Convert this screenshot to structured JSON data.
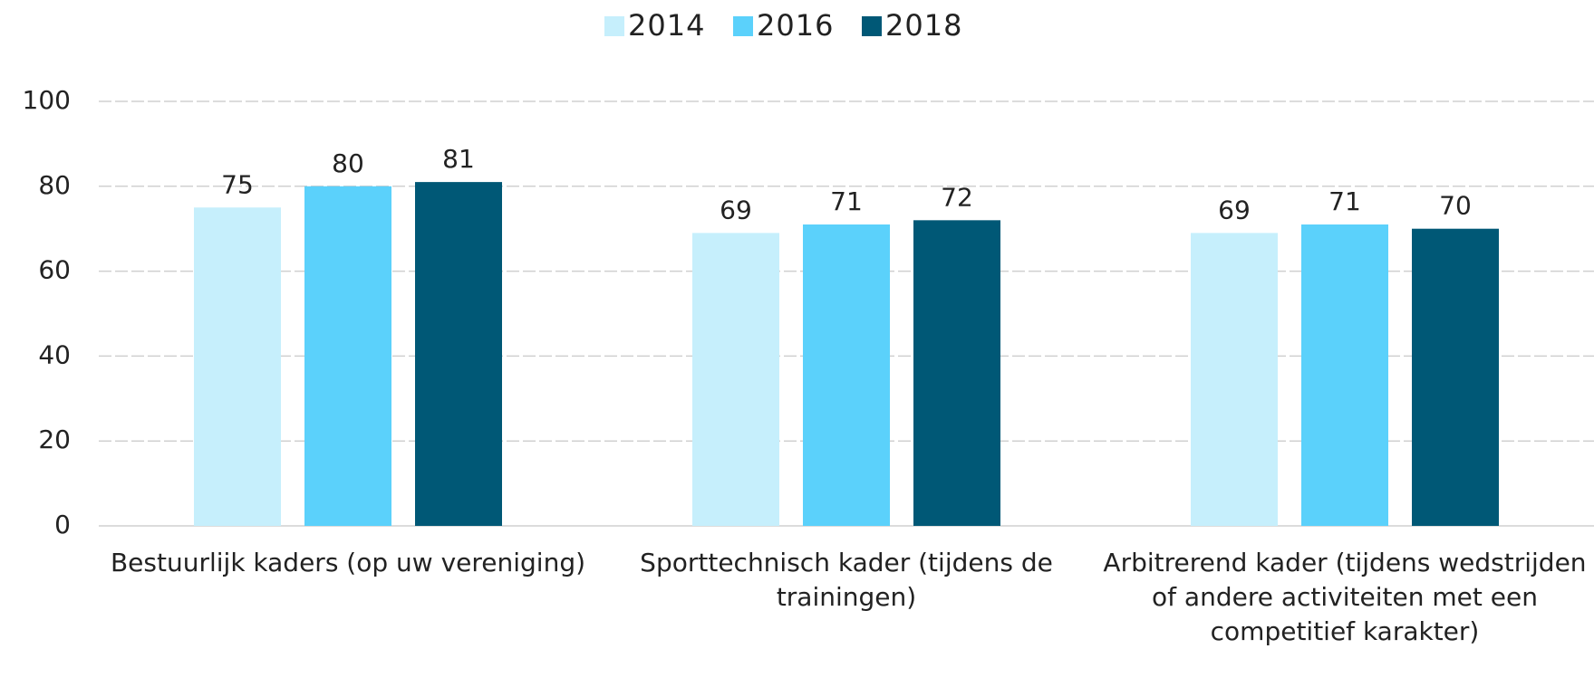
{
  "chart_data": {
    "type": "bar",
    "categories": [
      "Bestuurlijk kaders (op uw vereniging)",
      "Sporttechnisch kader (tijdens de trainingen)",
      "Arbitrerend kader (tijdens wedstrijden of andere activiteiten met een competitief karakter)"
    ],
    "series": [
      {
        "name": "2014",
        "color": "#c6effc",
        "values": [
          75,
          69,
          69
        ]
      },
      {
        "name": "2016",
        "color": "#5bd1fb",
        "values": [
          80,
          71,
          71
        ]
      },
      {
        "name": "2018",
        "color": "#005876",
        "values": [
          81,
          72,
          70
        ]
      }
    ],
    "ylim": [
      0,
      100
    ],
    "yticks": [
      0,
      20,
      40,
      60,
      80,
      100
    ],
    "grid": true,
    "legend": "top"
  }
}
